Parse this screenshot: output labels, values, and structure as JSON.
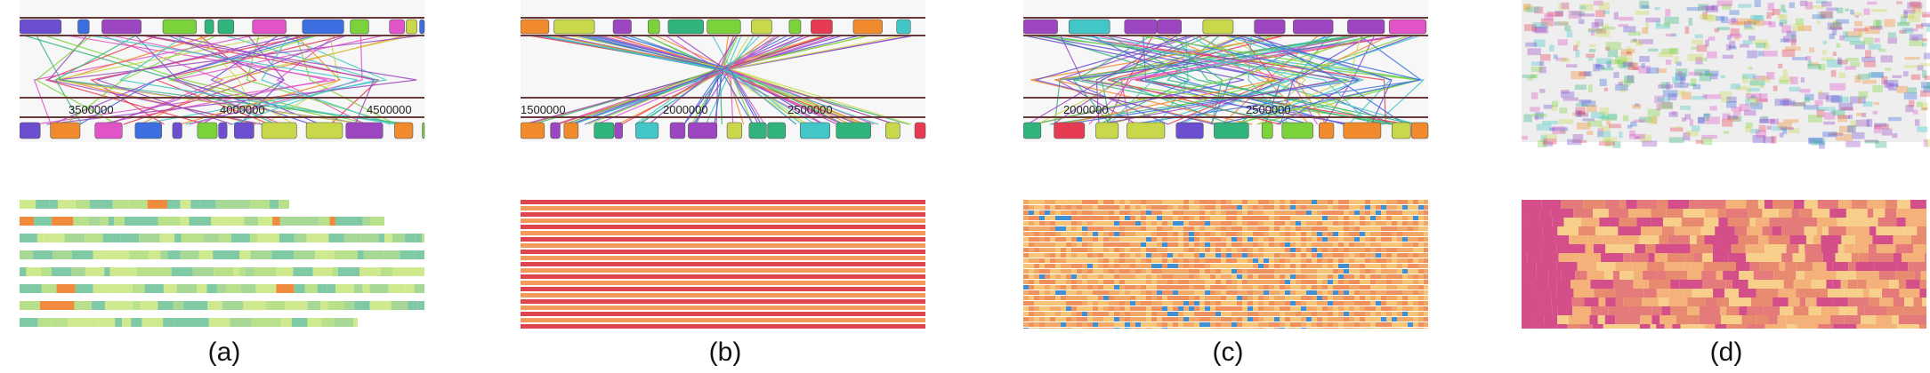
{
  "figure": {
    "panels": [
      {
        "id": "a",
        "caption": "(a)",
        "axis_ticks": [
          "3500000",
          "4000000",
          "4500000"
        ],
        "heatmap_palette": [
          "#b9e08a",
          "#cfe98f",
          "#a8d895",
          "#7fcaa5",
          "#f08a3c"
        ]
      },
      {
        "id": "b",
        "caption": "(b)",
        "axis_ticks": [
          "1500000",
          "2000000",
          "2500000"
        ],
        "heatmap_palette": [
          "#e0444f",
          "#f49a5a",
          "#ee7352",
          "#f7b56a"
        ]
      },
      {
        "id": "c",
        "caption": "(c)",
        "axis_ticks": [
          "2000000",
          "2500000"
        ],
        "heatmap_palette": [
          "#f8c577",
          "#f4a865",
          "#f0905c",
          "#3f8fd2"
        ]
      },
      {
        "id": "d",
        "caption": "(d)",
        "axis_ticks": [],
        "heatmap_palette": [
          "#d44f8a",
          "#e47a7a",
          "#f4b27a",
          "#f8cf8a",
          "#e88a70"
        ]
      }
    ],
    "block_colors": [
      "#7bd23a",
      "#43c6c7",
      "#6b4fd0",
      "#e054c8",
      "#f08a2c",
      "#3d6ee0",
      "#c9d84a",
      "#9c46c2",
      "#e63b53",
      "#30b47c"
    ]
  }
}
